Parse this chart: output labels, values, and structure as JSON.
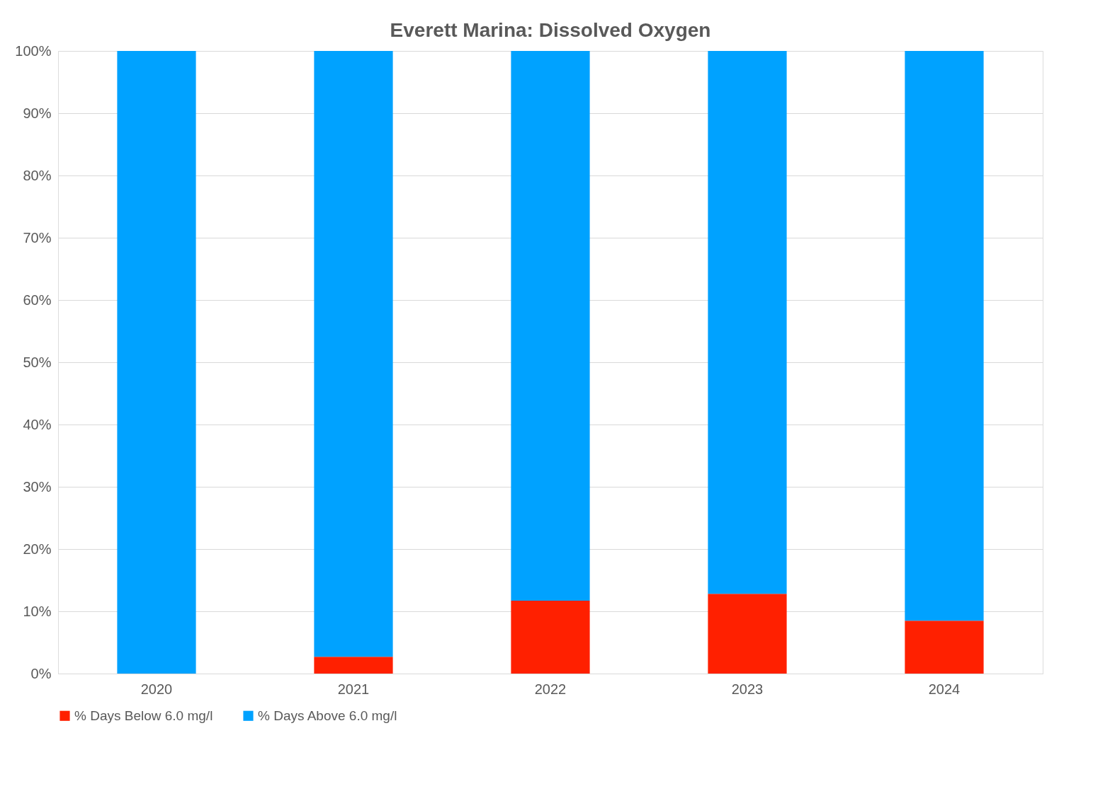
{
  "chart_data": {
    "type": "bar",
    "title": "Everett Marina: Dissolved Oxygen",
    "stacked": true,
    "categories": [
      "2020",
      "2021",
      "2022",
      "2023",
      "2024"
    ],
    "series": [
      {
        "name": "% Days Below 6.0 mg/l",
        "color": "#ff2000",
        "values": [
          0,
          2.7,
          11.7,
          12.8,
          8.5
        ]
      },
      {
        "name": "% Days Above 6.0 mg/l",
        "color": "#00a2ff",
        "values": [
          100,
          97.3,
          88.3,
          87.2,
          91.5
        ]
      }
    ],
    "ylim": [
      0,
      100
    ],
    "yticks": [
      {
        "value": 0,
        "label": "0%"
      },
      {
        "value": 10,
        "label": "10%"
      },
      {
        "value": 20,
        "label": "20%"
      },
      {
        "value": 30,
        "label": "30%"
      },
      {
        "value": 40,
        "label": "40%"
      },
      {
        "value": 50,
        "label": "50%"
      },
      {
        "value": 60,
        "label": "60%"
      },
      {
        "value": 70,
        "label": "70%"
      },
      {
        "value": 80,
        "label": "80%"
      },
      {
        "value": 90,
        "label": "90%"
      },
      {
        "value": 100,
        "label": "100%"
      }
    ],
    "grid": "y",
    "legend": "bottom"
  }
}
